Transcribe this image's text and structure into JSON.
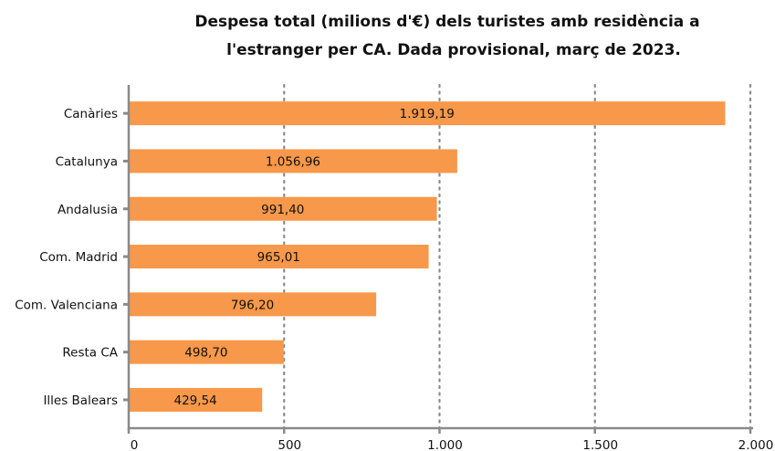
{
  "chart_data": {
    "type": "bar",
    "orientation": "horizontal",
    "title_lines": [
      "Despesa total (milions d'€) dels turistes amb residència a",
      "l'estranger per CA. Dada provisional, març de 2023."
    ],
    "categories": [
      "Canàries",
      "Catalunya",
      "Andalusia",
      "Com. Madrid",
      "Com. Valenciana",
      "Resta CA",
      "Illes Balears"
    ],
    "values": [
      1919.19,
      1056.96,
      991.4,
      965.01,
      796.2,
      498.7,
      429.54
    ],
    "value_labels": [
      "1.919,19",
      "1.056,96",
      "991,40",
      "965,01",
      "796,20",
      "498,70",
      "429,54"
    ],
    "xlim": [
      0,
      2000
    ],
    "xticks": [
      0,
      500,
      1000,
      1500,
      2000
    ],
    "xtick_labels": [
      "0",
      "500",
      "1.000",
      "1.500",
      "2.000"
    ],
    "xlabel": "",
    "ylabel": "",
    "grid": "vertical dotted",
    "legend": "none",
    "colors": {
      "bar": "#f7984a",
      "axis": "#8a8a8a",
      "grid": "#8a8a8a"
    }
  }
}
